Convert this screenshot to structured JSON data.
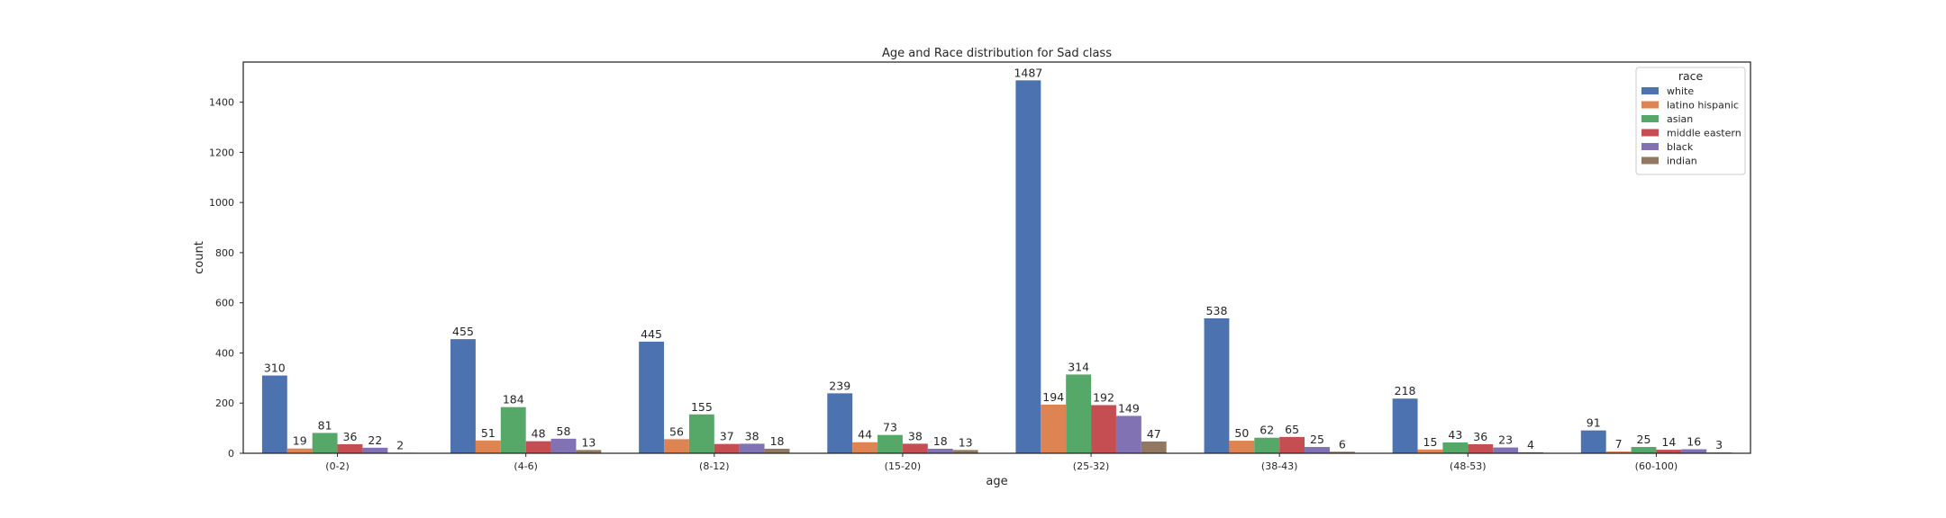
{
  "chart_data": {
    "type": "bar",
    "title": "Age and Race distribution for Sad class",
    "xlabel": "age",
    "ylabel": "count",
    "ylim": [
      0,
      1560
    ],
    "yticks": [
      0,
      200,
      400,
      600,
      800,
      1000,
      1200,
      1400
    ],
    "grid": false,
    "legend_position": "top-right",
    "legend_title": "race",
    "categories": [
      "(0-2)",
      "(4-6)",
      "(8-12)",
      "(15-20)",
      "(25-32)",
      "(38-43)",
      "(48-53)",
      "(60-100)"
    ],
    "series": [
      {
        "name": "white",
        "color": "#4c72b0",
        "values": [
          310,
          455,
          445,
          239,
          1487,
          538,
          218,
          91
        ]
      },
      {
        "name": "latino hispanic",
        "color": "#dd8452",
        "values": [
          19,
          51,
          56,
          44,
          194,
          50,
          15,
          7
        ]
      },
      {
        "name": "asian",
        "color": "#55a868",
        "values": [
          81,
          184,
          155,
          73,
          314,
          62,
          43,
          25
        ]
      },
      {
        "name": "middle eastern",
        "color": "#c44e52",
        "values": [
          36,
          48,
          37,
          38,
          192,
          65,
          36,
          14
        ]
      },
      {
        "name": "black",
        "color": "#8172b3",
        "values": [
          22,
          58,
          38,
          18,
          149,
          25,
          23,
          16
        ]
      },
      {
        "name": "indian",
        "color": "#937860",
        "values": [
          2,
          13,
          18,
          13,
          47,
          6,
          4,
          3
        ]
      }
    ]
  }
}
